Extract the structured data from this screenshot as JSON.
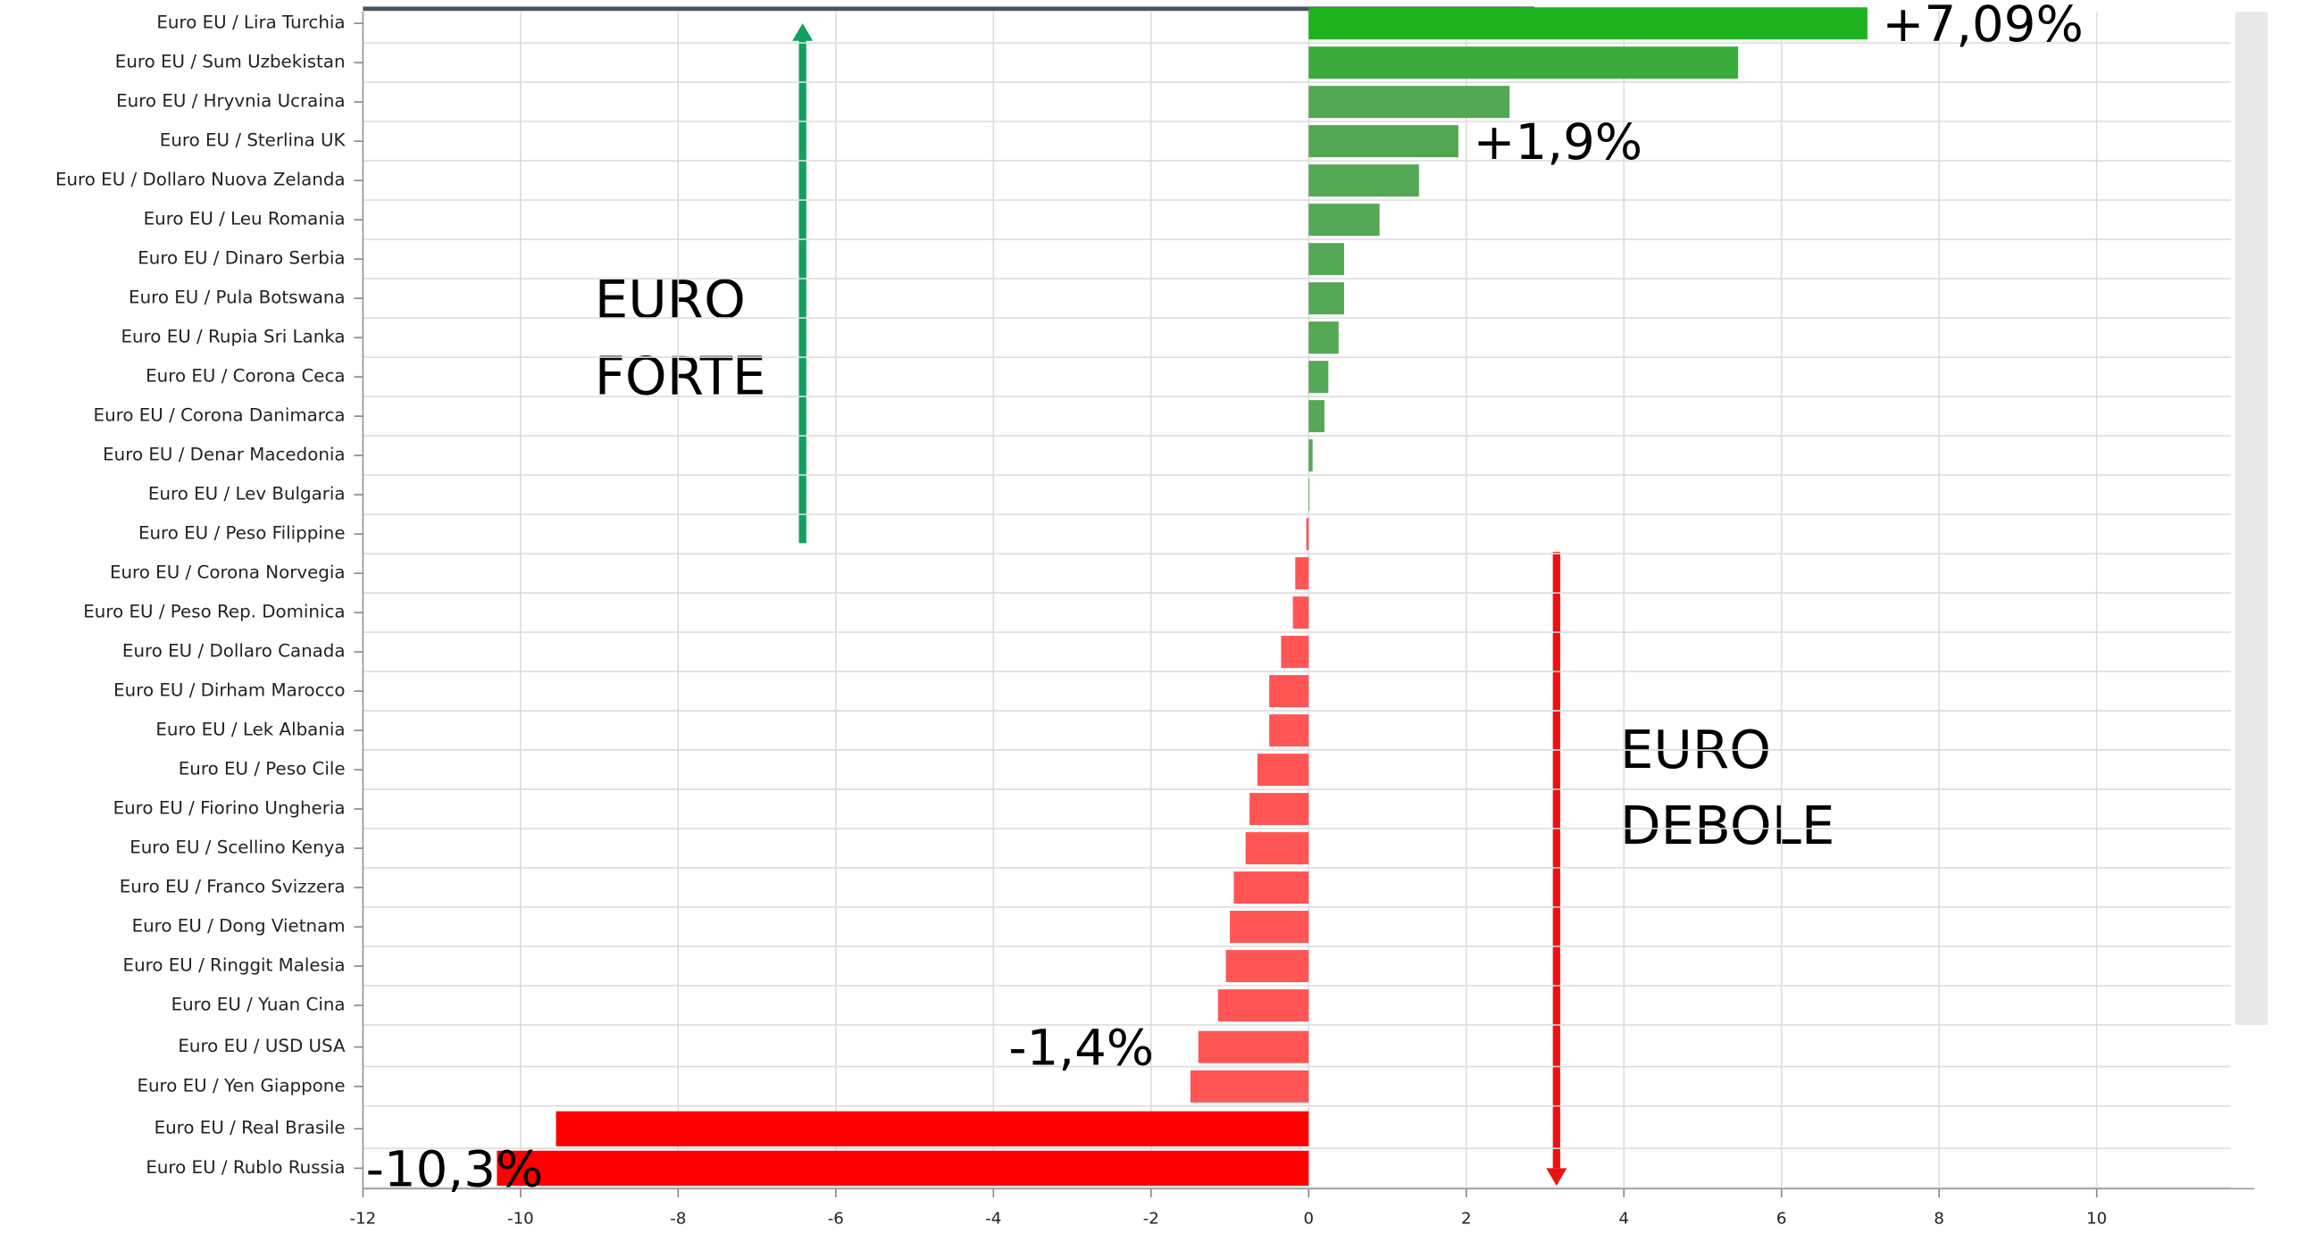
{
  "chart_data": {
    "type": "hbar",
    "categories": [
      "Euro EU / Lira Turchia",
      "Euro EU / Sum Uzbekistan",
      "Euro EU / Hryvnia Ucraina",
      "Euro EU / Sterlina UK",
      "Euro EU / Dollaro Nuova Zelanda",
      "Euro EU / Leu Romania",
      "Euro EU / Dinaro Serbia",
      "Euro EU / Pula Botswana",
      "Euro EU / Rupia Sri Lanka",
      "Euro EU / Corona Ceca",
      "Euro EU / Corona Danimarca",
      "Euro EU / Denar Macedonia",
      "Euro EU / Lev Bulgaria",
      "Euro EU / Peso Filippine",
      "Euro EU / Corona Norvegia",
      "Euro EU / Peso Rep. Dominica",
      "Euro EU / Dollaro Canada",
      "Euro EU / Dirham Marocco",
      "Euro EU / Lek Albania",
      "Euro EU / Peso Cile",
      "Euro EU / Fiorino Ungheria",
      "Euro EU / Scellino Kenya",
      "Euro EU / Franco Svizzera",
      "Euro EU / Dong Vietnam",
      "Euro EU / Ringgit Malesia",
      "Euro EU / Yuan Cina",
      "Euro EU / USD USA",
      "Euro EU / Yen Giappone",
      "Euro EU / Real Brasile",
      "Euro EU / Rublo Russia"
    ],
    "values": [
      7.09,
      5.45,
      2.55,
      1.9,
      1.4,
      0.9,
      0.45,
      0.45,
      0.38,
      0.25,
      0.2,
      0.05,
      0.01,
      -0.03,
      -0.17,
      -0.2,
      -0.35,
      -0.5,
      -0.5,
      -0.65,
      -0.75,
      -0.8,
      -0.95,
      -1.0,
      -1.05,
      -1.15,
      -1.4,
      -1.5,
      -9.55,
      -10.3
    ],
    "value_labels": [
      "+7,09%",
      null,
      null,
      "+1,9%",
      null,
      null,
      null,
      null,
      null,
      null,
      null,
      null,
      null,
      null,
      null,
      null,
      null,
      null,
      null,
      null,
      null,
      null,
      null,
      null,
      null,
      null,
      "-1,4%",
      null,
      null,
      "-10,3%"
    ],
    "colors": [
      "#1fb21f",
      "#3aac3a",
      "#52a852",
      "#52a852",
      "#55a855",
      "#55a855",
      "#55a855",
      "#55a855",
      "#55a855",
      "#55a855",
      "#55a855",
      "#55a855",
      "#55a855",
      "#ff5555",
      "#ff5555",
      "#ff5555",
      "#ff5555",
      "#ff5555",
      "#ff5555",
      "#ff5555",
      "#ff5555",
      "#ff5555",
      "#ff5555",
      "#ff5555",
      "#ff5555",
      "#ff5555",
      "#ff5555",
      "#ff5555",
      "#ff0000",
      "#ff0000"
    ],
    "xlim": [
      -12,
      12
    ],
    "xticks": [
      -12,
      -10,
      -8,
      -6,
      -4,
      -2,
      0,
      2,
      4,
      6,
      8,
      10
    ],
    "grid": true,
    "annotations": [
      [
        "EURO",
        "FORTE"
      ],
      [
        "EURO",
        "DEBOLE"
      ]
    ]
  }
}
